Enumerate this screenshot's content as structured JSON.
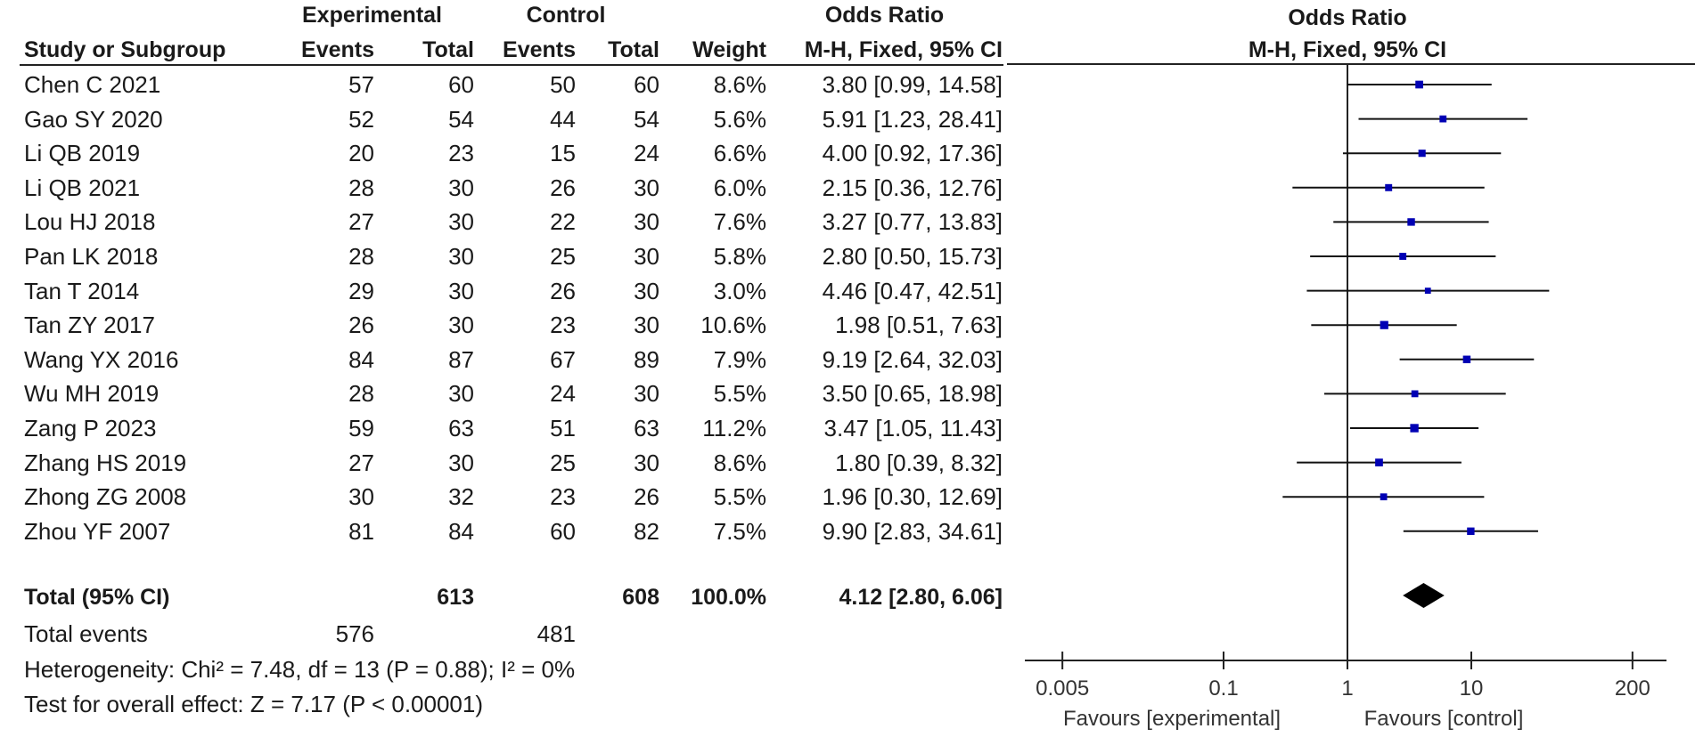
{
  "header": {
    "group_exp": "Experimental",
    "group_ctrl": "Control",
    "group_or": "Odds Ratio",
    "col_study": "Study or Subgroup",
    "col_exp_events": "Events",
    "col_exp_total": "Total",
    "col_ctrl_events": "Events",
    "col_ctrl_total": "Total",
    "col_weight": "Weight",
    "col_or": "M-H, Fixed, 95% CI",
    "plot_title": "Odds Ratio",
    "plot_subtitle": "M-H, Fixed, 95% CI"
  },
  "studies": [
    {
      "study": "Chen C 2021",
      "exp_events": "57",
      "exp_total": "60",
      "ctrl_events": "50",
      "ctrl_total": "60",
      "weight": "8.6%",
      "ci": "3.80 [0.99, 14.58]"
    },
    {
      "study": "Gao SY 2020",
      "exp_events": "52",
      "exp_total": "54",
      "ctrl_events": "44",
      "ctrl_total": "54",
      "weight": "5.6%",
      "ci": "5.91 [1.23, 28.41]"
    },
    {
      "study": "Li QB 2019",
      "exp_events": "20",
      "exp_total": "23",
      "ctrl_events": "15",
      "ctrl_total": "24",
      "weight": "6.6%",
      "ci": "4.00 [0.92, 17.36]"
    },
    {
      "study": "Li QB 2021",
      "exp_events": "28",
      "exp_total": "30",
      "ctrl_events": "26",
      "ctrl_total": "30",
      "weight": "6.0%",
      "ci": "2.15 [0.36, 12.76]"
    },
    {
      "study": "Lou HJ 2018",
      "exp_events": "27",
      "exp_total": "30",
      "ctrl_events": "22",
      "ctrl_total": "30",
      "weight": "7.6%",
      "ci": "3.27 [0.77, 13.83]"
    },
    {
      "study": "Pan LK 2018",
      "exp_events": "28",
      "exp_total": "30",
      "ctrl_events": "25",
      "ctrl_total": "30",
      "weight": "5.8%",
      "ci": "2.80 [0.50, 15.73]"
    },
    {
      "study": "Tan T 2014",
      "exp_events": "29",
      "exp_total": "30",
      "ctrl_events": "26",
      "ctrl_total": "30",
      "weight": "3.0%",
      "ci": "4.46 [0.47, 42.51]"
    },
    {
      "study": "Tan ZY 2017",
      "exp_events": "26",
      "exp_total": "30",
      "ctrl_events": "23",
      "ctrl_total": "30",
      "weight": "10.6%",
      "ci": "1.98 [0.51, 7.63]"
    },
    {
      "study": "Wang YX 2016",
      "exp_events": "84",
      "exp_total": "87",
      "ctrl_events": "67",
      "ctrl_total": "89",
      "weight": "7.9%",
      "ci": "9.19 [2.64, 32.03]"
    },
    {
      "study": "Wu MH 2019",
      "exp_events": "28",
      "exp_total": "30",
      "ctrl_events": "24",
      "ctrl_total": "30",
      "weight": "5.5%",
      "ci": "3.50 [0.65, 18.98]"
    },
    {
      "study": "Zang P 2023",
      "exp_events": "59",
      "exp_total": "63",
      "ctrl_events": "51",
      "ctrl_total": "63",
      "weight": "11.2%",
      "ci": "3.47 [1.05, 11.43]"
    },
    {
      "study": "Zhang HS 2019",
      "exp_events": "27",
      "exp_total": "30",
      "ctrl_events": "25",
      "ctrl_total": "30",
      "weight": "8.6%",
      "ci": "1.80 [0.39, 8.32]"
    },
    {
      "study": "Zhong ZG 2008",
      "exp_events": "30",
      "exp_total": "32",
      "ctrl_events": "23",
      "ctrl_total": "26",
      "weight": "5.5%",
      "ci": "1.96 [0.30, 12.69]"
    },
    {
      "study": "Zhou YF 2007",
      "exp_events": "81",
      "exp_total": "84",
      "ctrl_events": "60",
      "ctrl_total": "82",
      "weight": "7.5%",
      "ci": "9.90 [2.83, 34.61]"
    }
  ],
  "total": {
    "label": "Total (95% CI)",
    "exp_total": "613",
    "ctrl_total": "608",
    "weight": "100.0%",
    "ci": "4.12 [2.80, 6.06]"
  },
  "total_events": {
    "label": "Total events",
    "exp": "576",
    "ctrl": "481"
  },
  "heterogeneity": "Heterogeneity: Chi² = 7.48, df = 13 (P = 0.88); I² = 0%",
  "overall_effect": "Test for overall effect: Z = 7.17 (P < 0.00001)",
  "chart_data": {
    "type": "scatter",
    "title": "Odds Ratio",
    "subtitle": "M-H, Fixed, 95% CI",
    "x_scale": "log",
    "xlim": [
      0.005,
      200
    ],
    "x_ticks": [
      0.005,
      0.1,
      1,
      10,
      200
    ],
    "x_tick_labels": [
      "0.005",
      "0.1",
      "1",
      "10",
      "200"
    ],
    "reference_line": 1,
    "xlabel_left": "Favours [experimental]",
    "xlabel_right": "Favours [control]",
    "marker_color": "#0000b4",
    "points": [
      {
        "study": "Chen C 2021",
        "or": 3.8,
        "lo": 0.99,
        "hi": 14.58,
        "weight": 8.6
      },
      {
        "study": "Gao SY 2020",
        "or": 5.91,
        "lo": 1.23,
        "hi": 28.41,
        "weight": 5.6
      },
      {
        "study": "Li QB 2019",
        "or": 4.0,
        "lo": 0.92,
        "hi": 17.36,
        "weight": 6.6
      },
      {
        "study": "Li QB 2021",
        "or": 2.15,
        "lo": 0.36,
        "hi": 12.76,
        "weight": 6.0
      },
      {
        "study": "Lou HJ 2018",
        "or": 3.27,
        "lo": 0.77,
        "hi": 13.83,
        "weight": 7.6
      },
      {
        "study": "Pan LK 2018",
        "or": 2.8,
        "lo": 0.5,
        "hi": 15.73,
        "weight": 5.8
      },
      {
        "study": "Tan T 2014",
        "or": 4.46,
        "lo": 0.47,
        "hi": 42.51,
        "weight": 3.0
      },
      {
        "study": "Tan ZY 2017",
        "or": 1.98,
        "lo": 0.51,
        "hi": 7.63,
        "weight": 10.6
      },
      {
        "study": "Wang YX 2016",
        "or": 9.19,
        "lo": 2.64,
        "hi": 32.03,
        "weight": 7.9
      },
      {
        "study": "Wu MH 2019",
        "or": 3.5,
        "lo": 0.65,
        "hi": 18.98,
        "weight": 5.5
      },
      {
        "study": "Zang P 2023",
        "or": 3.47,
        "lo": 1.05,
        "hi": 11.43,
        "weight": 11.2
      },
      {
        "study": "Zhang HS 2019",
        "or": 1.8,
        "lo": 0.39,
        "hi": 8.32,
        "weight": 8.6
      },
      {
        "study": "Zhong ZG 2008",
        "or": 1.96,
        "lo": 0.3,
        "hi": 12.69,
        "weight": 5.5
      },
      {
        "study": "Zhou YF 2007",
        "or": 9.9,
        "lo": 2.83,
        "hi": 34.61,
        "weight": 7.5
      }
    ],
    "pooled": {
      "or": 4.12,
      "lo": 2.8,
      "hi": 6.06
    }
  }
}
